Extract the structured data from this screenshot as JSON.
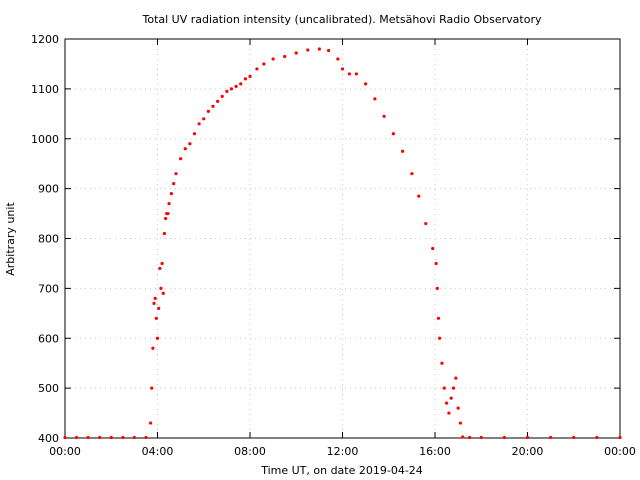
{
  "chart_data": {
    "type": "scatter",
    "title": "Total UV radiation intensity (uncalibrated). Metsähovi Radio Observatory",
    "xlabel": "Time UT, on date 2019-04-24",
    "ylabel": "Arbitrary unit",
    "xlim_hours": [
      0,
      24
    ],
    "ylim": [
      400,
      1200
    ],
    "x_ticks": [
      {
        "hour": 0,
        "label": "00:00"
      },
      {
        "hour": 4,
        "label": "04:00"
      },
      {
        "hour": 8,
        "label": "08:00"
      },
      {
        "hour": 12,
        "label": "12:00"
      },
      {
        "hour": 16,
        "label": "16:00"
      },
      {
        "hour": 20,
        "label": "20:00"
      },
      {
        "hour": 24,
        "label": "00:00"
      }
    ],
    "y_ticks": [
      400,
      500,
      600,
      700,
      800,
      900,
      1000,
      1100,
      1200
    ],
    "grid": true,
    "marker_color": "#ff0000",
    "series": [
      {
        "x_hours": [
          0.0,
          0.5,
          1.0,
          1.5,
          2.0,
          2.5,
          3.0,
          3.5,
          3.7,
          3.75,
          3.8,
          3.85,
          3.9,
          3.95,
          4.0,
          4.05,
          4.1,
          4.15,
          4.2,
          4.25,
          4.3,
          4.35,
          4.4,
          4.45,
          4.5,
          4.6,
          4.7,
          4.8,
          5.0,
          5.2,
          5.4,
          5.6,
          5.8,
          6.0,
          6.2,
          6.4,
          6.6,
          6.8,
          7.0,
          7.2,
          7.4,
          7.6,
          7.8,
          8.0,
          8.3,
          8.6,
          9.0,
          9.5,
          10.0,
          10.5,
          11.0,
          11.4,
          11.8,
          12.0,
          12.3,
          12.6,
          13.0,
          13.4,
          13.8,
          14.2,
          14.6,
          15.0,
          15.3,
          15.6,
          15.9,
          16.05,
          16.1,
          16.15,
          16.2,
          16.3,
          16.4,
          16.5,
          16.6,
          16.7,
          16.8,
          16.9,
          17.0,
          17.1,
          17.2,
          17.5,
          18.0,
          19.0,
          20.0,
          21.0,
          22.0,
          23.0,
          24.0
        ],
        "y": [
          401,
          401,
          401,
          401,
          401,
          401,
          401,
          401,
          430,
          500,
          580,
          670,
          680,
          640,
          600,
          660,
          740,
          700,
          750,
          690,
          810,
          840,
          850,
          850,
          870,
          890,
          910,
          930,
          960,
          980,
          990,
          1010,
          1030,
          1040,
          1055,
          1065,
          1075,
          1085,
          1095,
          1100,
          1105,
          1110,
          1120,
          1125,
          1140,
          1150,
          1160,
          1165,
          1172,
          1178,
          1180,
          1177,
          1160,
          1140,
          1130,
          1130,
          1110,
          1080,
          1045,
          1010,
          975,
          930,
          885,
          830,
          780,
          750,
          700,
          640,
          600,
          550,
          500,
          470,
          450,
          480,
          500,
          520,
          460,
          430,
          402,
          401,
          401,
          401,
          401,
          401,
          401,
          401,
          401
        ]
      }
    ]
  }
}
